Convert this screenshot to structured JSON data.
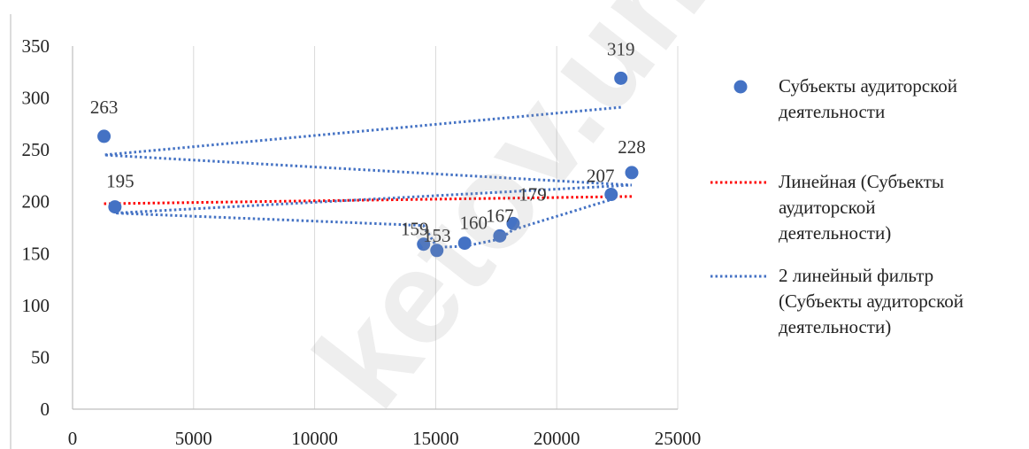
{
  "chart_data": {
    "type": "scatter",
    "title": "",
    "xlabel": "",
    "ylabel": "",
    "xlim": [
      0,
      25000
    ],
    "ylim": [
      0,
      350
    ],
    "x_ticks": [
      0,
      5000,
      10000,
      15000,
      20000,
      25000
    ],
    "y_ticks": [
      0,
      50,
      100,
      150,
      200,
      250,
      300,
      350
    ],
    "grid": "vertical",
    "legend_position": "right",
    "series": [
      {
        "name": "Субъекты аудиторской деятельности",
        "kind": "points",
        "color": "#4472C4",
        "points": [
          {
            "x": 1300,
            "y": 263,
            "label": "263"
          },
          {
            "x": 1750,
            "y": 195,
            "label": "195"
          },
          {
            "x": 14500,
            "y": 159,
            "label": "159"
          },
          {
            "x": 15050,
            "y": 153,
            "label": "153"
          },
          {
            "x": 16200,
            "y": 160,
            "label": "160"
          },
          {
            "x": 17650,
            "y": 167,
            "label": "167"
          },
          {
            "x": 18200,
            "y": 179,
            "label": "179"
          },
          {
            "x": 22250,
            "y": 207,
            "label": "207"
          },
          {
            "x": 22650,
            "y": 319,
            "label": "319"
          },
          {
            "x": 23100,
            "y": 228,
            "label": "228"
          }
        ]
      },
      {
        "name": "Линейная (Субъекты аудиторской деятельности)",
        "kind": "trend-line",
        "color": "#FF0000",
        "x": [
          1300,
          23100
        ],
        "y": [
          198,
          205
        ]
      },
      {
        "name": "2 линейный фильтр (Субъекты аудиторской деятельности)",
        "kind": "moving-average",
        "color": "#4472C4",
        "x": [
          22650,
          1300,
          23100,
          1750,
          14500,
          15050,
          16200,
          17650,
          18200,
          22250
        ],
        "y": [
          291,
          245,
          216,
          189,
          177,
          156,
          157,
          164,
          173,
          202
        ]
      }
    ],
    "legend": [
      {
        "lines": [
          "Субъекты аудиторской",
          "деятельности"
        ]
      },
      {
        "lines": [
          "Линейная (Субъекты",
          "аудиторской",
          "деятельности)"
        ]
      },
      {
        "lines": [
          "2 линейный фильтр",
          "(Субъекты аудиторской",
          "деятельности)"
        ]
      }
    ]
  }
}
